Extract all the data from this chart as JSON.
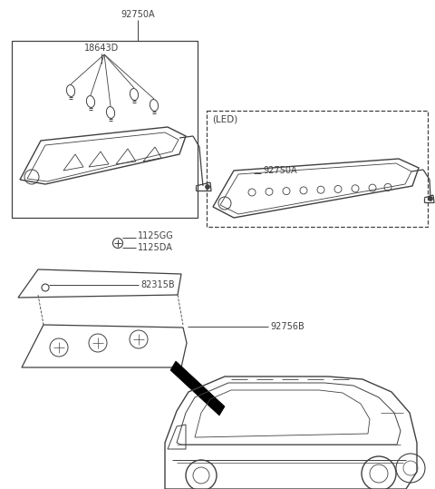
{
  "bg_color": "#ffffff",
  "line_color": "#404040",
  "text_color": "#404040",
  "labels": {
    "92750A_top": "92750A",
    "18643D": "18643D",
    "1125GG": "1125GG",
    "1125DA": "1125DA",
    "82315B": "82315B",
    "92756B": "92756B",
    "LED": "(LED)",
    "92750A_led": "92750A"
  },
  "fontsize_label": 7,
  "fontsize_led": 7.5
}
